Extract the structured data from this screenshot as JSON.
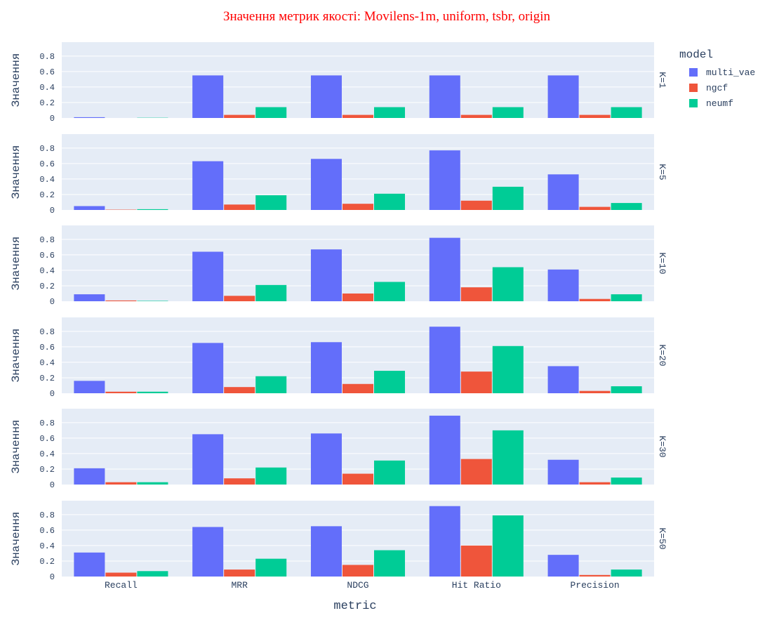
{
  "chart_data": {
    "type": "bar",
    "title": "Значення метрик якості: Movilens-1m, uniform, tsbr, origin",
    "title_color": "#ff0000",
    "xlabel": "metric",
    "ylabel": "Значення",
    "categories": [
      "Recall",
      "MRR",
      "NDCG",
      "Hit Ratio",
      "Precision"
    ],
    "ylim": [
      0,
      0.98
    ],
    "yticks": [
      0,
      0.2,
      0.4,
      0.6,
      0.8
    ],
    "ytick_labels": [
      "0",
      "0.2",
      "0.4",
      "0.6",
      "0.8"
    ],
    "grid": true,
    "plot_background": "#e5ecf6",
    "legend": {
      "title": "model",
      "placement": "top-right",
      "entries": [
        "multi_vae",
        "ngcf",
        "neumf"
      ]
    },
    "series_colors": {
      "multi_vae": "#636efa",
      "ngcf": "#ef553b",
      "neumf": "#00cc96"
    },
    "facets": [
      {
        "label": "K=1",
        "series": [
          {
            "name": "multi_vae",
            "values": [
              0.01,
              0.55,
              0.55,
              0.55,
              0.55
            ]
          },
          {
            "name": "ngcf",
            "values": [
              0.0,
              0.04,
              0.04,
              0.04,
              0.04
            ]
          },
          {
            "name": "neumf",
            "values": [
              0.003,
              0.14,
              0.14,
              0.14,
              0.14
            ]
          }
        ]
      },
      {
        "label": "K=5",
        "series": [
          {
            "name": "multi_vae",
            "values": [
              0.05,
              0.63,
              0.66,
              0.77,
              0.46
            ]
          },
          {
            "name": "ngcf",
            "values": [
              0.004,
              0.07,
              0.08,
              0.12,
              0.04
            ]
          },
          {
            "name": "neumf",
            "values": [
              0.01,
              0.19,
              0.21,
              0.3,
              0.09
            ]
          }
        ]
      },
      {
        "label": "K=10",
        "series": [
          {
            "name": "multi_vae",
            "values": [
              0.09,
              0.64,
              0.67,
              0.82,
              0.41
            ]
          },
          {
            "name": "ngcf",
            "values": [
              0.01,
              0.07,
              0.1,
              0.18,
              0.03
            ]
          },
          {
            "name": "neumf",
            "values": [
              0.005,
              0.21,
              0.25,
              0.44,
              0.09
            ]
          }
        ]
      },
      {
        "label": "K=20",
        "series": [
          {
            "name": "multi_vae",
            "values": [
              0.16,
              0.65,
              0.66,
              0.86,
              0.35
            ]
          },
          {
            "name": "ngcf",
            "values": [
              0.02,
              0.08,
              0.12,
              0.28,
              0.03
            ]
          },
          {
            "name": "neumf",
            "values": [
              0.02,
              0.22,
              0.29,
              0.61,
              0.09
            ]
          }
        ]
      },
      {
        "label": "K=30",
        "series": [
          {
            "name": "multi_vae",
            "values": [
              0.21,
              0.65,
              0.66,
              0.89,
              0.32
            ]
          },
          {
            "name": "ngcf",
            "values": [
              0.03,
              0.08,
              0.14,
              0.33,
              0.03
            ]
          },
          {
            "name": "neumf",
            "values": [
              0.03,
              0.22,
              0.31,
              0.7,
              0.09
            ]
          }
        ]
      },
      {
        "label": "K=50",
        "series": [
          {
            "name": "multi_vae",
            "values": [
              0.31,
              0.64,
              0.65,
              0.91,
              0.28
            ]
          },
          {
            "name": "ngcf",
            "values": [
              0.05,
              0.09,
              0.15,
              0.4,
              0.02
            ]
          },
          {
            "name": "neumf",
            "values": [
              0.07,
              0.23,
              0.34,
              0.79,
              0.09
            ]
          }
        ]
      }
    ]
  }
}
